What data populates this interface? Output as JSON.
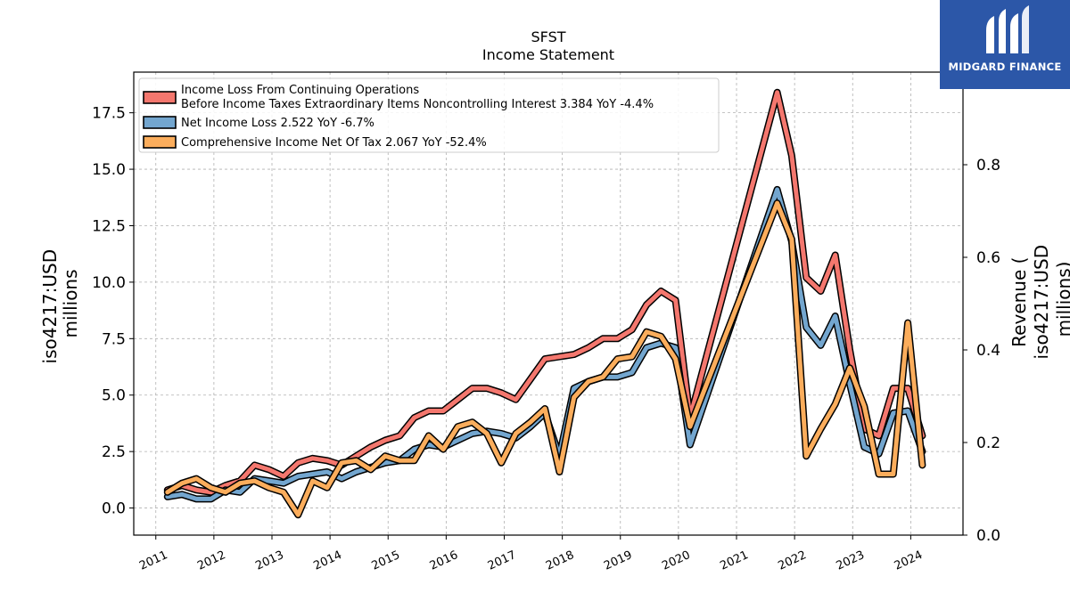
{
  "chart_data": {
    "type": "line",
    "title": "SFST",
    "subtitle": "Income Statement",
    "ylabel_left": [
      "iso4217:USD",
      "millions"
    ],
    "ylabel_right": [
      "Revenue (",
      "iso4217:USD",
      "millions)"
    ],
    "ylim_left": [
      -1.2,
      19.3
    ],
    "yticks_left": [
      0.0,
      2.5,
      5.0,
      7.5,
      10.0,
      12.5,
      15.0,
      17.5
    ],
    "yticks_left_labels": [
      "0.0",
      "2.5",
      "5.0",
      "7.5",
      "10.0",
      "12.5",
      "15.0",
      "17.5"
    ],
    "ylim_right": [
      0.0,
      1.0
    ],
    "yticks_right": [
      0.0,
      0.2,
      0.4,
      0.6,
      0.8
    ],
    "yticks_right_labels": [
      "0.0",
      "0.2",
      "0.4",
      "0.6",
      "0.8"
    ],
    "xlim": [
      2010.62,
      2024.9
    ],
    "xticks": [
      2011,
      2012,
      2013,
      2014,
      2015,
      2016,
      2017,
      2018,
      2019,
      2020,
      2021,
      2022,
      2023,
      2024
    ],
    "xtick_labels": [
      "2011",
      "2012",
      "2013",
      "2014",
      "2015",
      "2016",
      "2017",
      "2018",
      "2019",
      "2020",
      "2021",
      "2022",
      "2023",
      "2024"
    ],
    "grid": true,
    "legend_position": "top-left",
    "x": [
      2011.2,
      2011.45,
      2011.7,
      2011.95,
      2012.2,
      2012.45,
      2012.7,
      2012.95,
      2013.2,
      2013.45,
      2013.7,
      2013.95,
      2014.2,
      2014.45,
      2014.7,
      2014.95,
      2015.2,
      2015.45,
      2015.7,
      2015.95,
      2016.2,
      2016.45,
      2016.7,
      2016.95,
      2017.2,
      2017.45,
      2017.7,
      2017.95,
      2018.2,
      2018.45,
      2018.7,
      2018.95,
      2019.2,
      2019.45,
      2019.7,
      2019.95,
      2020.2,
      2021.7,
      2021.95,
      2022.2,
      2022.45,
      2022.7,
      2022.95,
      2023.2,
      2023.45,
      2023.7,
      2023.95,
      2024.2
    ],
    "series": [
      {
        "name": "Income Loss From Continuing Operations Before Income Taxes Extraordinary Items Noncontrolling Interest",
        "legend_lines": [
          "Income Loss From Continuing Operations",
          "Before Income Taxes Extraordinary Items Noncontrolling Interest  3.384 YoY -4.4%"
        ],
        "color": "#f4776e",
        "values": [
          0.8,
          1.0,
          0.8,
          0.7,
          1.0,
          1.2,
          1.9,
          1.7,
          1.4,
          2.0,
          2.2,
          2.1,
          1.9,
          2.3,
          2.7,
          3.0,
          3.2,
          4.0,
          4.3,
          4.3,
          4.8,
          5.3,
          5.3,
          5.1,
          4.8,
          5.7,
          6.6,
          6.7,
          6.8,
          7.1,
          7.5,
          7.5,
          7.9,
          9.0,
          9.6,
          9.2,
          4.0,
          18.4,
          15.6,
          10.2,
          9.6,
          11.2,
          7.0,
          3.5,
          3.2,
          5.3,
          5.3,
          3.2
        ]
      },
      {
        "name": "Net Income Loss",
        "legend_lines": [
          "Net Income Loss  2.522 YoY -6.7%"
        ],
        "color": "#73a6cf",
        "values": [
          0.5,
          0.6,
          0.4,
          0.4,
          0.8,
          0.7,
          1.3,
          1.2,
          1.1,
          1.4,
          1.5,
          1.6,
          1.3,
          1.6,
          1.8,
          2.0,
          2.1,
          2.6,
          2.8,
          2.7,
          3.0,
          3.3,
          3.4,
          3.3,
          3.1,
          3.6,
          4.2,
          2.3,
          5.3,
          5.6,
          5.8,
          5.8,
          6.0,
          7.1,
          7.3,
          7.1,
          2.8,
          14.1,
          11.8,
          8.0,
          7.2,
          8.5,
          5.5,
          2.7,
          2.4,
          4.2,
          4.3,
          2.5
        ]
      },
      {
        "name": "Comprehensive Income Net Of Tax",
        "legend_lines": [
          "Comprehensive Income Net Of Tax  2.067 YoY -52.4%"
        ],
        "color": "#fbad5c",
        "values": [
          0.7,
          1.1,
          1.3,
          0.9,
          0.7,
          1.1,
          1.2,
          0.9,
          0.7,
          -0.3,
          1.2,
          0.9,
          2.0,
          2.1,
          1.7,
          2.3,
          2.1,
          2.1,
          3.2,
          2.6,
          3.6,
          3.8,
          3.3,
          2.0,
          3.3,
          3.8,
          4.4,
          1.6,
          4.9,
          5.6,
          5.8,
          6.6,
          6.7,
          7.8,
          7.6,
          6.6,
          3.6,
          13.5,
          11.9,
          2.3,
          3.5,
          4.6,
          6.2,
          4.5,
          1.5,
          1.5,
          8.2,
          1.9
        ]
      }
    ]
  },
  "logo": {
    "name": "MIDGARD FINANCE",
    "icon": "midgard-logo-icon",
    "color": "#2c57a8"
  }
}
